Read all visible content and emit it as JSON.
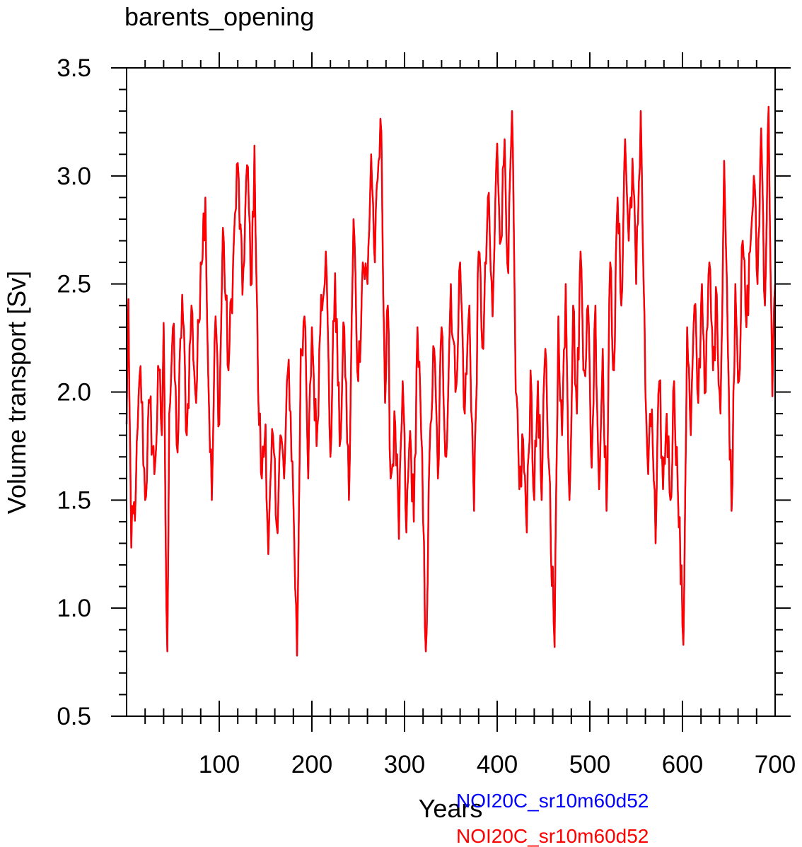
{
  "chart_data": {
    "type": "line",
    "title": "barents_opening",
    "xlabel": "Years",
    "ylabel": "Volume transport [Sv]",
    "xlim": [
      0,
      700
    ],
    "ylim": [
      0.5,
      3.5
    ],
    "x_ticks": [
      100,
      200,
      300,
      400,
      500,
      600,
      700
    ],
    "x_tick_labels": [
      "100",
      "200",
      "300",
      "400",
      "500",
      "600",
      "700"
    ],
    "y_ticks": [
      0.5,
      1.0,
      1.5,
      2.0,
      2.5,
      3.0,
      3.5
    ],
    "y_tick_labels": [
      "0.5",
      "1.0",
      "1.5",
      "2.0",
      "2.5",
      "3.0",
      "3.5"
    ],
    "grid": false,
    "legend_position": "bottom-right, below the plot",
    "series": [
      {
        "name": "NOI20C_sr10m60d52",
        "color": "#0000ff",
        "anchors": [
          [
            0,
            1.85
          ],
          [
            2,
            2.43
          ],
          [
            5,
            1.28
          ],
          [
            10,
            1.55
          ],
          [
            15,
            2.12
          ],
          [
            20,
            1.5
          ],
          [
            25,
            1.95
          ],
          [
            30,
            1.62
          ],
          [
            35,
            2.1
          ],
          [
            38,
            1.8
          ],
          [
            40,
            2.32
          ],
          [
            42,
            1.4
          ],
          [
            44,
            0.8
          ],
          [
            46,
            1.9
          ],
          [
            50,
            2.3
          ],
          [
            55,
            1.72
          ],
          [
            60,
            2.45
          ],
          [
            65,
            1.8
          ],
          [
            70,
            2.4
          ],
          [
            75,
            1.95
          ],
          [
            80,
            2.6
          ],
          [
            85,
            2.9
          ],
          [
            88,
            2.1
          ],
          [
            92,
            1.5
          ],
          [
            96,
            2.35
          ],
          [
            100,
            1.85
          ],
          [
            104,
            2.76
          ],
          [
            110,
            2.1
          ],
          [
            115,
            2.6
          ],
          [
            120,
            3.06
          ],
          [
            125,
            2.45
          ],
          [
            130,
            3.05
          ],
          [
            135,
            2.5
          ],
          [
            138,
            3.14
          ],
          [
            142,
            2.0
          ],
          [
            146,
            1.6
          ],
          [
            150,
            1.85
          ],
          [
            153,
            1.25
          ],
          [
            158,
            1.8
          ],
          [
            162,
            1.38
          ],
          [
            166,
            1.8
          ],
          [
            170,
            1.6
          ],
          [
            175,
            2.15
          ],
          [
            180,
            1.5
          ],
          [
            184,
            0.78
          ],
          [
            188,
            2.2
          ],
          [
            192,
            2.35
          ],
          [
            196,
            1.6
          ],
          [
            200,
            2.3
          ],
          [
            205,
            1.75
          ],
          [
            210,
            2.45
          ],
          [
            215,
            2.65
          ],
          [
            220,
            1.7
          ],
          [
            225,
            2.55
          ],
          [
            230,
            1.75
          ],
          [
            235,
            2.3
          ],
          [
            240,
            1.5
          ],
          [
            245,
            2.8
          ],
          [
            250,
            2.05
          ],
          [
            255,
            2.6
          ],
          [
            260,
            2.5
          ],
          [
            264,
            3.1
          ],
          [
            268,
            2.6
          ],
          [
            272,
            3.07
          ],
          [
            275,
            3.2
          ],
          [
            279,
            1.95
          ],
          [
            282,
            2.4
          ],
          [
            285,
            1.6
          ],
          [
            290,
            1.85
          ],
          [
            294,
            1.32
          ],
          [
            298,
            2.05
          ],
          [
            302,
            1.35
          ],
          [
            306,
            1.82
          ],
          [
            310,
            1.4
          ],
          [
            314,
            2.3
          ],
          [
            318,
            1.8
          ],
          [
            323,
            0.8
          ],
          [
            328,
            1.85
          ],
          [
            332,
            2.2
          ],
          [
            336,
            1.6
          ],
          [
            340,
            2.3
          ],
          [
            345,
            1.7
          ],
          [
            350,
            2.5
          ],
          [
            355,
            2.0
          ],
          [
            360,
            2.6
          ],
          [
            365,
            1.9
          ],
          [
            370,
            2.4
          ],
          [
            375,
            1.45
          ],
          [
            380,
            2.65
          ],
          [
            385,
            2.2
          ],
          [
            390,
            2.9
          ],
          [
            395,
            2.35
          ],
          [
            400,
            3.15
          ],
          [
            404,
            2.7
          ],
          [
            408,
            3.17
          ],
          [
            412,
            2.55
          ],
          [
            416,
            3.3
          ],
          [
            420,
            2.0
          ],
          [
            424,
            1.55
          ],
          [
            428,
            1.78
          ],
          [
            432,
            1.35
          ],
          [
            436,
            2.1
          ],
          [
            440,
            1.5
          ],
          [
            444,
            2.05
          ],
          [
            448,
            1.5
          ],
          [
            452,
            2.2
          ],
          [
            456,
            1.65
          ],
          [
            462,
            0.82
          ],
          [
            466,
            2.35
          ],
          [
            470,
            1.8
          ],
          [
            474,
            2.5
          ],
          [
            478,
            1.5
          ],
          [
            482,
            2.4
          ],
          [
            486,
            1.9
          ],
          [
            490,
            2.65
          ],
          [
            494,
            2.1
          ],
          [
            498,
            2.4
          ],
          [
            502,
            1.65
          ],
          [
            506,
            2.4
          ],
          [
            510,
            1.55
          ],
          [
            514,
            2.2
          ],
          [
            518,
            1.45
          ],
          [
            522,
            2.6
          ],
          [
            526,
            2.1
          ],
          [
            530,
            2.9
          ],
          [
            534,
            2.4
          ],
          [
            538,
            3.17
          ],
          [
            542,
            2.7
          ],
          [
            546,
            3.08
          ],
          [
            550,
            2.5
          ],
          [
            555,
            3.3
          ],
          [
            560,
            2.0
          ],
          [
            563,
            1.62
          ],
          [
            567,
            1.92
          ],
          [
            571,
            1.3
          ],
          [
            575,
            2.05
          ],
          [
            579,
            1.55
          ],
          [
            583,
            1.9
          ],
          [
            587,
            1.5
          ],
          [
            591,
            2.05
          ],
          [
            595,
            1.55
          ],
          [
            601,
            0.83
          ],
          [
            605,
            2.3
          ],
          [
            609,
            1.8
          ],
          [
            613,
            2.4
          ],
          [
            617,
            1.95
          ],
          [
            621,
            2.5
          ],
          [
            625,
            2.0
          ],
          [
            629,
            2.6
          ],
          [
            633,
            2.1
          ],
          [
            637,
            2.45
          ],
          [
            641,
            1.9
          ],
          [
            645,
            3.07
          ],
          [
            649,
            2.2
          ],
          [
            653,
            1.45
          ],
          [
            657,
            2.5
          ],
          [
            661,
            2.05
          ],
          [
            665,
            2.7
          ],
          [
            669,
            2.3
          ],
          [
            673,
            2.65
          ],
          [
            677,
            3.0
          ],
          [
            681,
            2.5
          ],
          [
            685,
            3.22
          ],
          [
            689,
            2.4
          ],
          [
            693,
            3.32
          ],
          [
            697,
            1.98
          ],
          [
            700,
            2.5
          ]
        ]
      },
      {
        "name": "NOI20C_sr10m60d52",
        "color": "#ff0000",
        "same_as_series": 0
      }
    ]
  }
}
